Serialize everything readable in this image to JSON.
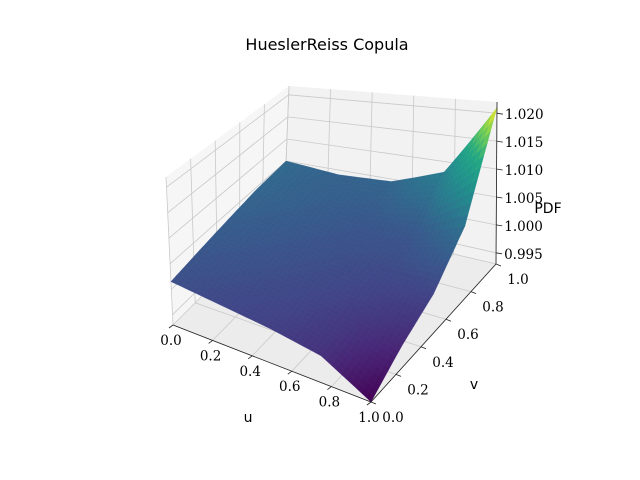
{
  "chart_data": {
    "type": "surface",
    "title": "HueslerReiss Copula",
    "xlabel": "u",
    "ylabel": "v",
    "zlabel": "PDF",
    "xlim": [
      0.0,
      1.0
    ],
    "ylim": [
      0.0,
      1.0
    ],
    "zlim": [
      0.993,
      1.022
    ],
    "x_ticks": [
      "0.0",
      "0.2",
      "0.4",
      "0.6",
      "0.8",
      "1.0"
    ],
    "y_ticks": [
      "0.0",
      "0.2",
      "0.4",
      "0.6",
      "0.8",
      "1.0"
    ],
    "z_ticks": [
      "0.995",
      "1.000",
      "1.005",
      "1.010",
      "1.015",
      "1.020"
    ],
    "colormap": "viridis",
    "grid": true,
    "surface_samples": {
      "u": [
        0.0,
        0.25,
        0.5,
        0.75,
        1.0
      ],
      "v": [
        0.0,
        0.25,
        0.5,
        0.75,
        1.0
      ],
      "pdf": [
        [
          1.0015,
          1.0025,
          1.0035,
          1.0045,
          1.005
        ],
        [
          1.0005,
          1.0015,
          1.0025,
          1.0035,
          1.004
        ],
        [
          0.9995,
          1.0005,
          1.0015,
          1.0025,
          1.0045
        ],
        [
          0.998,
          0.999,
          1.0005,
          1.0025,
          1.008
        ],
        [
          0.993,
          0.997,
          1.0,
          1.006,
          1.021
        ]
      ]
    }
  }
}
